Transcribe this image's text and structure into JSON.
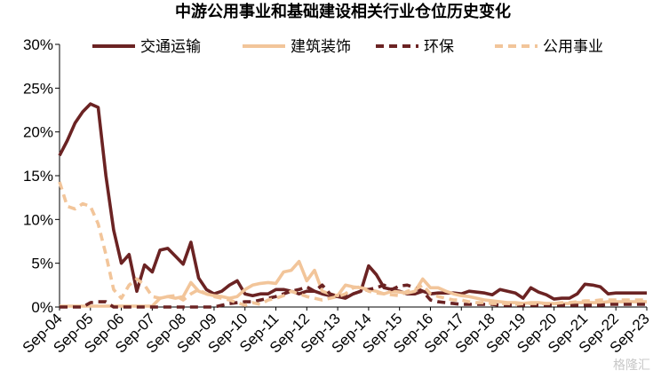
{
  "chart_data": {
    "type": "line",
    "title": "中游公用事业和基础建设相关行业仓位历史变化",
    "xlabel": "",
    "ylabel": "",
    "ylim": [
      0,
      30
    ],
    "y_ticks": [
      "0%",
      "5%",
      "10%",
      "15%",
      "20%",
      "25%",
      "30%"
    ],
    "y_tick_values": [
      0,
      5,
      10,
      15,
      20,
      25,
      30
    ],
    "x_ticks": [
      "Sep-04",
      "Sep-05",
      "Sep-06",
      "Sep-07",
      "Sep-08",
      "Sep-09",
      "Sep-10",
      "Sep-11",
      "Sep-12",
      "Sep-13",
      "Sep-14",
      "Sep-15",
      "Sep-16",
      "Sep-17",
      "Sep-18",
      "Sep-19",
      "Sep-20",
      "Sep-21",
      "Sep-22",
      "Sep-23"
    ],
    "x_index_range": [
      0,
      76
    ],
    "grid": false,
    "legend_position": "top",
    "series": [
      {
        "name": "交通运输",
        "color": "#6b2323",
        "dash": "solid",
        "values": [
          17.3,
          19.0,
          21.0,
          22.3,
          23.2,
          22.8,
          15.0,
          8.8,
          5.0,
          6.0,
          1.8,
          4.8,
          4.0,
          6.5,
          6.7,
          5.8,
          4.9,
          7.4,
          3.3,
          2.0,
          1.5,
          1.8,
          2.5,
          3.0,
          1.5,
          1.3,
          1.5,
          1.5,
          2.0,
          2.0,
          1.8,
          1.5,
          1.8,
          1.8,
          1.5,
          1.3,
          1.2,
          1.0,
          1.5,
          1.8,
          4.7,
          3.7,
          2.2,
          2.0,
          1.8,
          1.5,
          1.5,
          1.8,
          1.5,
          1.6,
          1.6,
          1.6,
          1.5,
          1.8,
          1.7,
          1.6,
          1.4,
          2.0,
          1.8,
          1.6,
          1.0,
          2.2,
          1.7,
          1.4,
          0.9,
          1.0,
          1.0,
          1.5,
          2.6,
          2.5,
          2.3,
          1.5,
          1.6,
          1.6,
          1.6,
          1.6,
          1.6
        ]
      },
      {
        "name": "建筑装饰",
        "color": "#f2c59a",
        "dash": "solid",
        "values": [
          0.1,
          0.1,
          0.1,
          0.1,
          0.1,
          0.1,
          0.1,
          0.1,
          0.1,
          0.1,
          0.1,
          0.1,
          0.1,
          1.0,
          1.2,
          1.0,
          1.2,
          2.8,
          1.8,
          1.5,
          1.3,
          1.2,
          1.0,
          1.2,
          2.0,
          2.5,
          2.7,
          2.8,
          2.7,
          4.0,
          4.2,
          5.2,
          3.0,
          4.2,
          1.8,
          1.5,
          1.3,
          2.5,
          2.3,
          2.2,
          2.0,
          1.8,
          1.5,
          1.8,
          1.7,
          1.6,
          1.8,
          3.2,
          2.2,
          2.2,
          1.8,
          1.5,
          1.3,
          1.2,
          1.0,
          0.8,
          0.7,
          0.6,
          0.5,
          0.5,
          0.4,
          0.5,
          0.5,
          0.4,
          0.4,
          0.4,
          0.4,
          0.5,
          0.5,
          0.5,
          0.5,
          0.6,
          0.6,
          0.6,
          0.6,
          0.6,
          0.6
        ]
      },
      {
        "name": "环保",
        "color": "#6b2323",
        "dash": "dash",
        "values": [
          0.0,
          0.0,
          0.0,
          0.0,
          0.5,
          0.6,
          0.6,
          0.0,
          0.0,
          0.0,
          0.0,
          0.0,
          0.0,
          0.0,
          0.0,
          0.0,
          0.0,
          0.0,
          0.0,
          0.0,
          0.0,
          0.2,
          0.4,
          0.5,
          0.6,
          0.6,
          0.8,
          1.0,
          1.2,
          1.5,
          1.8,
          2.0,
          2.3,
          1.8,
          2.5,
          1.5,
          1.2,
          1.4,
          1.5,
          1.8,
          2.0,
          2.2,
          2.5,
          2.0,
          2.4,
          2.5,
          2.2,
          1.8,
          0.8,
          0.6,
          0.5,
          0.4,
          0.3,
          0.3,
          0.3,
          0.3,
          0.3,
          0.2,
          0.2,
          0.2,
          0.2,
          0.2,
          0.2,
          0.2,
          0.2,
          0.2,
          0.2,
          0.2,
          0.2,
          0.2,
          0.2,
          0.3,
          0.3,
          0.3,
          0.3,
          0.3,
          0.3
        ]
      },
      {
        "name": "公用事业",
        "color": "#f2c59a",
        "dash": "dash",
        "values": [
          14.3,
          11.5,
          11.2,
          11.8,
          11.5,
          9.5,
          6.0,
          2.0,
          1.0,
          2.5,
          3.2,
          2.5,
          1.2,
          1.0,
          1.2,
          1.3,
          0.8,
          1.5,
          2.0,
          1.5,
          1.2,
          1.0,
          0.8,
          0.5,
          0.2,
          0.5,
          0.3,
          0.8,
          1.0,
          1.3,
          1.8,
          1.5,
          1.2,
          1.0,
          0.8,
          1.0,
          1.2,
          1.5,
          2.2,
          2.3,
          1.8,
          1.6,
          1.5,
          1.4,
          1.3,
          1.8,
          2.0,
          2.5,
          1.5,
          1.2,
          1.0,
          0.8,
          0.8,
          0.6,
          0.5,
          0.5,
          0.4,
          0.4,
          0.4,
          0.3,
          0.4,
          0.4,
          0.4,
          0.4,
          0.4,
          0.5,
          0.5,
          0.6,
          0.7,
          0.7,
          0.8,
          0.8,
          0.8,
          0.8,
          0.8,
          0.8,
          0.8
        ]
      }
    ]
  },
  "watermark": "格隆汇"
}
